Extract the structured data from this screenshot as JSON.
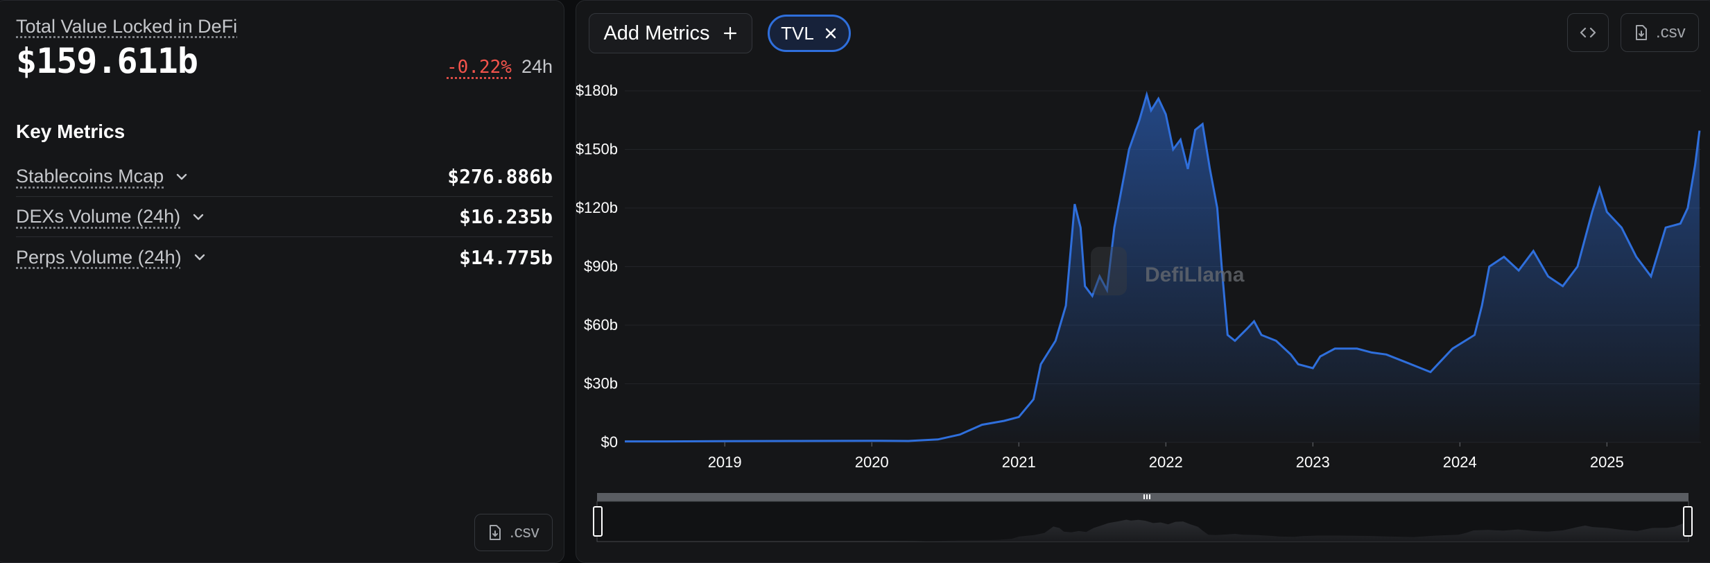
{
  "summary": {
    "tvl_label": "Total Value Locked in DeFi",
    "tvl_value": "$159.611b",
    "change_value": "-0.22%",
    "change_period": "24h",
    "colors": {
      "negative": "#f4544c",
      "accent": "#2f6fdc"
    }
  },
  "key_metrics": {
    "title": "Key Metrics",
    "items": [
      {
        "label": "Stablecoins Mcap",
        "value": "$276.886b",
        "icon": "chevron-down-icon"
      },
      {
        "label": "DEXs Volume (24h)",
        "value": "$16.235b",
        "icon": "chevron-down-icon"
      },
      {
        "label": "Perps Volume (24h)",
        "value": "$14.775b",
        "icon": "chevron-down-icon"
      }
    ]
  },
  "left_csv_label": ".csv",
  "toolbar": {
    "add_metrics_label": "Add Metrics",
    "tvl_chip_label": "TVL",
    "csv_label": ".csv",
    "embed_icon": "code-icon",
    "download_icon": "file-download-icon"
  },
  "watermark": "DefiLlama",
  "chart_data": {
    "type": "area",
    "series": [
      {
        "name": "TVL",
        "color": "#2f6fdc",
        "points": [
          [
            2018.26,
            0.5
          ],
          [
            2018.6,
            0.5
          ],
          [
            2019.0,
            0.6
          ],
          [
            2019.5,
            0.7
          ],
          [
            2020.0,
            0.8
          ],
          [
            2020.25,
            0.7
          ],
          [
            2020.45,
            1.5
          ],
          [
            2020.6,
            4
          ],
          [
            2020.75,
            9
          ],
          [
            2020.9,
            11
          ],
          [
            2021.0,
            13
          ],
          [
            2021.1,
            22
          ],
          [
            2021.15,
            40
          ],
          [
            2021.25,
            52
          ],
          [
            2021.32,
            70
          ],
          [
            2021.38,
            122
          ],
          [
            2021.42,
            110
          ],
          [
            2021.45,
            80
          ],
          [
            2021.5,
            75
          ],
          [
            2021.55,
            85
          ],
          [
            2021.6,
            78
          ],
          [
            2021.65,
            110
          ],
          [
            2021.7,
            130
          ],
          [
            2021.75,
            150
          ],
          [
            2021.82,
            165
          ],
          [
            2021.87,
            178
          ],
          [
            2021.9,
            170
          ],
          [
            2021.95,
            176
          ],
          [
            2022.0,
            168
          ],
          [
            2022.05,
            150
          ],
          [
            2022.1,
            155
          ],
          [
            2022.15,
            140
          ],
          [
            2022.2,
            160
          ],
          [
            2022.25,
            163
          ],
          [
            2022.3,
            140
          ],
          [
            2022.35,
            120
          ],
          [
            2022.38,
            90
          ],
          [
            2022.42,
            55
          ],
          [
            2022.47,
            52
          ],
          [
            2022.55,
            58
          ],
          [
            2022.6,
            62
          ],
          [
            2022.65,
            55
          ],
          [
            2022.75,
            52
          ],
          [
            2022.85,
            45
          ],
          [
            2022.9,
            40
          ],
          [
            2023.0,
            38
          ],
          [
            2023.05,
            44
          ],
          [
            2023.15,
            48
          ],
          [
            2023.3,
            48
          ],
          [
            2023.4,
            46
          ],
          [
            2023.5,
            45
          ],
          [
            2023.6,
            42
          ],
          [
            2023.7,
            39
          ],
          [
            2023.8,
            36
          ],
          [
            2023.85,
            40
          ],
          [
            2023.95,
            48
          ],
          [
            2024.1,
            55
          ],
          [
            2024.15,
            70
          ],
          [
            2024.2,
            90
          ],
          [
            2024.3,
            95
          ],
          [
            2024.4,
            88
          ],
          [
            2024.5,
            98
          ],
          [
            2024.6,
            85
          ],
          [
            2024.7,
            80
          ],
          [
            2024.8,
            90
          ],
          [
            2024.9,
            118
          ],
          [
            2024.95,
            130
          ],
          [
            2025.0,
            118
          ],
          [
            2025.1,
            110
          ],
          [
            2025.2,
            95
          ],
          [
            2025.3,
            85
          ],
          [
            2025.4,
            110
          ],
          [
            2025.5,
            112
          ],
          [
            2025.55,
            120
          ],
          [
            2025.6,
            142
          ],
          [
            2025.63,
            159.611
          ]
        ]
      }
    ],
    "x_ticks": [
      2019,
      2020,
      2021,
      2022,
      2023,
      2024,
      2025
    ],
    "x_tick_labels": [
      "2019",
      "2020",
      "2021",
      "2022",
      "2023",
      "2024",
      "2025"
    ],
    "y_ticks": [
      0,
      30,
      60,
      90,
      120,
      150,
      180
    ],
    "y_tick_labels": [
      "$0",
      "$30b",
      "$60b",
      "$90b",
      "$120b",
      "$150b",
      "$180b"
    ],
    "xlim": [
      2018.32,
      2025.64
    ],
    "ylim": [
      0,
      180
    ],
    "grid": true,
    "title": "",
    "xlabel": "",
    "ylabel": ""
  }
}
